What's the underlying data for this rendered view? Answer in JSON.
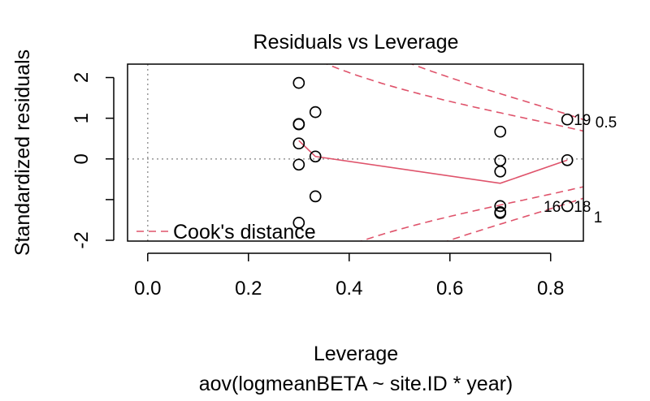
{
  "chart_data": {
    "type": "scatter",
    "title": "Residuals vs Leverage",
    "xlabel": "Leverage",
    "subtitle": "aov(logmeanBETA ~ site.ID * year)",
    "ylabel": "Standardized residuals",
    "xlim": [
      -0.04,
      0.865
    ],
    "ylim": [
      -2.02,
      2.33
    ],
    "xticks": [
      {
        "value": 0.0,
        "label": "0.0"
      },
      {
        "value": 0.2,
        "label": "0.2"
      },
      {
        "value": 0.4,
        "label": "0.4"
      },
      {
        "value": 0.6,
        "label": "0.6"
      },
      {
        "value": 0.8,
        "label": "0.8"
      }
    ],
    "yticks": [
      {
        "value": 2,
        "label": "2"
      },
      {
        "value": 1,
        "label": "1"
      },
      {
        "value": 0,
        "label": "0"
      },
      {
        "value": -1,
        "label": ""
      },
      {
        "value": -2,
        "label": "-2"
      }
    ],
    "reference_lines": {
      "x": 0,
      "y": 0
    },
    "points": [
      {
        "x": 0.3,
        "y": 1.87
      },
      {
        "x": 0.3,
        "y": 0.86
      },
      {
        "x": 0.3,
        "y": 0.85
      },
      {
        "x": 0.3,
        "y": 0.38
      },
      {
        "x": 0.3,
        "y": -0.14
      },
      {
        "x": 0.3,
        "y": -1.57
      },
      {
        "x": 0.333,
        "y": 1.15
      },
      {
        "x": 0.333,
        "y": 0.06
      },
      {
        "x": 0.333,
        "y": -0.92
      },
      {
        "x": 0.7,
        "y": 0.67
      },
      {
        "x": 0.7,
        "y": -0.04
      },
      {
        "x": 0.7,
        "y": -0.31
      },
      {
        "x": 0.7,
        "y": -1.16
      },
      {
        "x": 0.7,
        "y": -1.31
      },
      {
        "x": 0.7,
        "y": -1.33
      },
      {
        "x": 0.833,
        "y": 0.97
      },
      {
        "x": 0.833,
        "y": -0.03
      },
      {
        "x": 0.833,
        "y": -1.16
      }
    ],
    "point_labels": [
      {
        "label": "19",
        "x": 0.833,
        "y": 0.97,
        "side": "right"
      },
      {
        "label": "16",
        "x": 0.833,
        "y": -1.16,
        "side": "left"
      },
      {
        "label": "18",
        "x": 0.833,
        "y": -1.16,
        "side": "right"
      }
    ],
    "smoother": {
      "x": [
        0.3,
        0.333,
        0.7,
        0.833
      ],
      "y": [
        0.45,
        0.06,
        -0.6,
        -0.03
      ],
      "color": "#DF536B"
    },
    "cooks_distance": {
      "color": "#DF536B",
      "legend_label": "Cook's distance",
      "legend_position": "bottom-left",
      "contours": [
        {
          "level": 0.5,
          "label": "0.5"
        },
        {
          "level": 1,
          "label": "1"
        }
      ],
      "n_params": 6
    },
    "grid": false
  }
}
